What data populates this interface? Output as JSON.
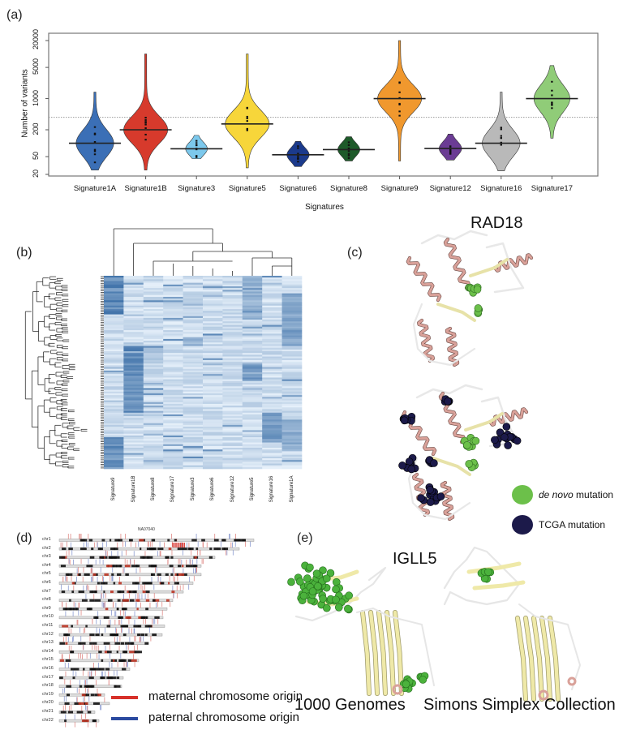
{
  "panels": {
    "a": {
      "label": "(a)"
    },
    "b": {
      "label": "(b)"
    },
    "c": {
      "label": "(c)",
      "title": "RAD18",
      "legend": [
        {
          "italic": "de novo",
          "text": " mutation",
          "color": "#6cc04a"
        },
        {
          "italic": "",
          "text": "TCGA mutation",
          "color": "#1c1a4a"
        }
      ]
    },
    "d": {
      "label": "(d)",
      "title": "NA07040",
      "chromosomes": [
        "chr1",
        "chr2",
        "chr3",
        "chr4",
        "chr5",
        "chr6",
        "chr7",
        "chr8",
        "chr9",
        "chr10",
        "chr11",
        "chr12",
        "chr13",
        "chr14",
        "chr15",
        "chr16",
        "chr17",
        "chr18",
        "chr19",
        "chr20",
        "chr21",
        "chr22"
      ],
      "legend": [
        {
          "text": "maternal chromosome origin",
          "color": "#d7302a"
        },
        {
          "text": "paternal chromosome origin",
          "color": "#2b4aa0"
        }
      ]
    },
    "e": {
      "label": "(e)",
      "title": "IGLL5",
      "left_caption": "1000 Genomes",
      "right_caption": "Simons Simplex Collection"
    }
  },
  "chart_data": [
    {
      "type": "violin",
      "xlabel": "Signatures",
      "ylabel": "Number of variants",
      "yscale": "log",
      "ylim": [
        20,
        30000
      ],
      "yticks": [
        "20",
        "50",
        "200",
        "1000",
        "5000",
        "20000"
      ],
      "ytick_values": [
        20,
        50,
        200,
        1000,
        5000,
        20000
      ],
      "threshold_line": {
        "value": 380,
        "style": "dotted"
      },
      "categories": [
        "Signature1A",
        "Signature1B",
        "Signature3",
        "Signature5",
        "Signature6",
        "Signature8",
        "Signature9",
        "Signature12",
        "Signature16",
        "Signature17"
      ],
      "medians": [
        100,
        200,
        75,
        270,
        55,
        72,
        1000,
        76,
        100,
        1000
      ],
      "min": [
        25,
        25,
        45,
        28,
        30,
        40,
        40,
        42,
        24,
        130
      ],
      "max": [
        1400,
        10000,
        150,
        10000,
        110,
        140,
        20000,
        160,
        1400,
        5500
      ],
      "colors": [
        "#3b6fb6",
        "#d73a2c",
        "#7cc8ec",
        "#f7d63a",
        "#1b3a8c",
        "#1e5a2a",
        "#f0982e",
        "#6b3c94",
        "#b9b9b9",
        "#90cc78"
      ]
    },
    {
      "type": "heatmap",
      "columns": [
        "Signature9",
        "Signature1B",
        "Signature8",
        "Signature17",
        "Signature3",
        "Signature6",
        "Signature12",
        "Signature5",
        "Signature16",
        "Signature1A"
      ],
      "color_low": "#e6f0fa",
      "color_high": "#1f5a9a",
      "dendrograms": [
        "top",
        "left"
      ]
    }
  ]
}
